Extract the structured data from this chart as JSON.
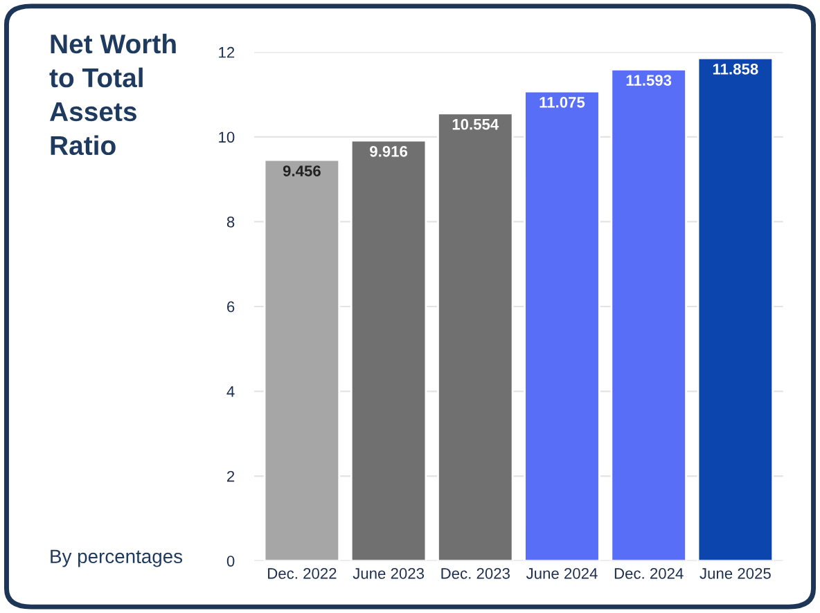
{
  "chart_data": {
    "type": "bar",
    "title": "Net Worth\nto Total\nAssets\nRatio",
    "annotations": [
      "By percentages"
    ],
    "categories": [
      "Dec. 2022",
      "June 2023",
      "Dec. 2023",
      "June 2024",
      "Dec. 2024",
      "June 2025"
    ],
    "values": [
      9.456,
      9.916,
      10.554,
      11.075,
      11.593,
      11.858
    ],
    "colors": [
      "#a6a6a6",
      "#707070",
      "#707070",
      "#586ef7",
      "#586ef7",
      "#0b45ad"
    ],
    "ylim": [
      0,
      12
    ],
    "yticks": [
      0,
      2,
      4,
      6,
      8,
      10,
      12
    ],
    "grid": "y",
    "data_labels": true
  }
}
